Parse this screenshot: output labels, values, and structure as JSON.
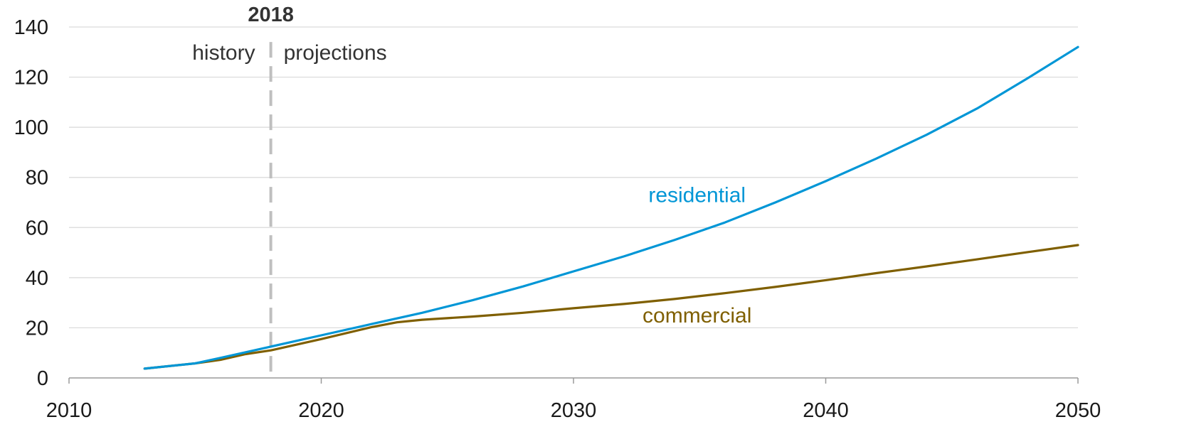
{
  "chart_data": {
    "type": "line",
    "title": "",
    "xlabel": "",
    "ylabel": "",
    "xlim": [
      2010,
      2050
    ],
    "ylim": [
      0,
      140
    ],
    "x_ticks": [
      2010,
      2020,
      2030,
      2040,
      2050
    ],
    "y_ticks": [
      0,
      20,
      40,
      60,
      80,
      100,
      120,
      140
    ],
    "grid": "horizontal",
    "legend": "none (direct labels)",
    "divider": {
      "x": 2018,
      "label": "2018",
      "left_label": "history",
      "right_label": "projections",
      "color": "#bfbfbf",
      "style": "dashed"
    },
    "series": [
      {
        "name": "residential",
        "color": "#0096d6",
        "points": [
          [
            2013,
            3.7
          ],
          [
            2015,
            5.8
          ],
          [
            2016,
            8.0
          ],
          [
            2018,
            12.5
          ],
          [
            2020,
            17.0
          ],
          [
            2022,
            21.5
          ],
          [
            2024,
            26.0
          ],
          [
            2026,
            31.0
          ],
          [
            2028,
            36.5
          ],
          [
            2030,
            42.5
          ],
          [
            2032,
            48.5
          ],
          [
            2034,
            55.0
          ],
          [
            2036,
            62.0
          ],
          [
            2038,
            70.0
          ],
          [
            2040,
            78.5
          ],
          [
            2042,
            87.5
          ],
          [
            2044,
            97.0
          ],
          [
            2046,
            107.5
          ],
          [
            2048,
            119.5
          ],
          [
            2050,
            132.0
          ]
        ]
      },
      {
        "name": "commercial",
        "color": "#7f5f00",
        "points": [
          [
            2013,
            3.7
          ],
          [
            2015,
            5.8
          ],
          [
            2016,
            7.2
          ],
          [
            2017,
            9.5
          ],
          [
            2018,
            11.0
          ],
          [
            2020,
            15.5
          ],
          [
            2022,
            20.3
          ],
          [
            2023,
            22.2
          ],
          [
            2024,
            23.2
          ],
          [
            2026,
            24.5
          ],
          [
            2028,
            26.0
          ],
          [
            2030,
            27.8
          ],
          [
            2032,
            29.5
          ],
          [
            2034,
            31.5
          ],
          [
            2036,
            33.8
          ],
          [
            2038,
            36.3
          ],
          [
            2040,
            39.0
          ],
          [
            2042,
            41.8
          ],
          [
            2044,
            44.5
          ],
          [
            2046,
            47.3
          ],
          [
            2048,
            50.2
          ],
          [
            2050,
            53.0
          ]
        ]
      }
    ]
  }
}
